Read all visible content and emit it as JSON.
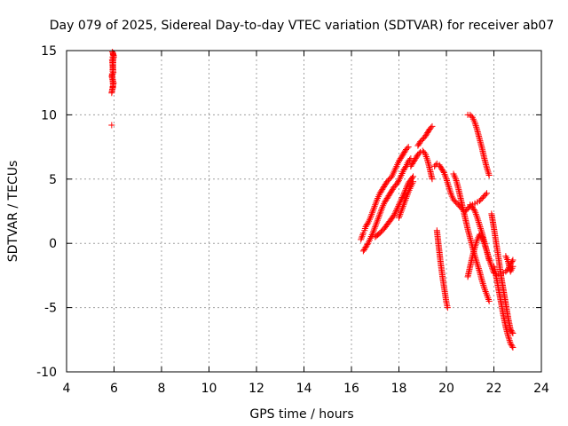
{
  "chart_data": {
    "type": "scatter",
    "title": "Day 079 of 2025, Sidereal Day-to-day VTEC variation (SDTVAR) for receiver ab07",
    "xlabel": "GPS time / hours",
    "ylabel": "SDTVAR / TECUs",
    "xlim": [
      4,
      24
    ],
    "ylim": [
      -10,
      15
    ],
    "xticks": [
      4,
      6,
      8,
      10,
      12,
      14,
      16,
      18,
      20,
      22,
      24
    ],
    "yticks": [
      -10,
      -5,
      0,
      5,
      10,
      15
    ],
    "xtick_labels": [
      "4",
      "6",
      "8",
      "10",
      "12",
      "14",
      "16",
      "18",
      "20",
      "22",
      "24"
    ],
    "ytick_labels": [
      "-10",
      "-5",
      "0",
      "5",
      "10",
      "15"
    ],
    "grid": true,
    "marker": "plus",
    "series": [
      {
        "color": "#ff0000",
        "x": [
          5.9,
          5.9,
          5.92,
          5.95,
          5.95,
          5.97,
          5.98,
          5.9,
          5.92,
          5.95,
          5.97,
          5.92,
          5.94,
          5.96,
          5.98,
          5.93,
          5.96,
          5.99,
          5.91,
          5.93,
          5.96,
          5.92,
          5.94,
          5.97
        ],
        "y": [
          9.2,
          11.7,
          11.9,
          12.1,
          12.2,
          12.4,
          12.5,
          13.0,
          13.1,
          13.2,
          13.3,
          14.3,
          14.5,
          14.7,
          14.6,
          14.9,
          14.8,
          14.5,
          11.8,
          12.0,
          12.3,
          13.2,
          13.4,
          14.4
        ]
      },
      {
        "color": "#ff0000",
        "x": [
          16.4,
          16.5,
          16.55,
          16.6,
          16.7,
          16.8,
          16.9,
          17.0,
          17.1,
          17.2,
          17.3,
          17.4,
          17.5,
          17.6,
          17.7,
          17.8,
          17.9,
          18.0,
          18.1,
          18.2,
          18.3,
          18.4
        ],
        "y": [
          0.3,
          0.8,
          1.0,
          1.3,
          1.6,
          2.0,
          2.5,
          3.0,
          3.5,
          3.9,
          4.2,
          4.5,
          4.8,
          5.0,
          5.2,
          5.6,
          6.0,
          6.4,
          6.7,
          7.0,
          7.3,
          7.5
        ]
      },
      {
        "color": "#ff0000",
        "x": [
          16.5,
          16.6,
          16.7,
          16.8,
          16.9,
          17.0,
          17.1,
          17.2,
          17.3,
          17.4,
          17.5,
          17.6,
          17.7,
          17.8,
          17.9,
          18.0,
          18.1,
          18.2,
          18.3,
          18.4,
          18.5
        ],
        "y": [
          -0.6,
          -0.3,
          0.0,
          0.4,
          0.8,
          1.3,
          1.8,
          2.3,
          2.8,
          3.2,
          3.5,
          3.8,
          4.1,
          4.4,
          4.6,
          4.9,
          5.3,
          5.7,
          6.0,
          6.4,
          6.6
        ]
      },
      {
        "color": "#ff0000",
        "x": [
          17.0,
          17.2,
          17.4,
          17.6,
          17.8,
          18.0,
          18.2,
          18.4,
          18.6
        ],
        "y": [
          0.5,
          0.8,
          1.2,
          1.7,
          2.2,
          3.0,
          3.8,
          4.7,
          5.2
        ]
      },
      {
        "color": "#ff0000",
        "x": [
          18.0,
          18.1,
          18.2,
          18.3,
          18.4,
          18.5,
          18.6
        ],
        "y": [
          2.0,
          2.5,
          3.0,
          3.5,
          4.0,
          4.4,
          4.8
        ]
      },
      {
        "color": "#ff0000",
        "x": [
          18.8,
          18.9,
          19.0,
          19.1,
          19.2,
          19.3,
          19.4
        ],
        "y": [
          7.6,
          7.9,
          8.1,
          8.3,
          8.6,
          8.9,
          9.1
        ]
      },
      {
        "color": "#ff0000",
        "x": [
          18.5,
          18.6,
          18.7,
          18.8,
          18.9,
          19.0,
          19.1,
          19.2,
          19.3,
          19.4
        ],
        "y": [
          6.0,
          6.3,
          6.6,
          6.9,
          7.1,
          7.2,
          7.0,
          6.5,
          5.8,
          5.0
        ]
      },
      {
        "color": "#ff0000",
        "x": [
          19.5,
          19.6,
          19.7,
          19.8,
          19.9,
          20.0,
          20.1,
          20.2,
          20.3,
          20.4,
          20.5,
          20.6,
          20.7,
          20.8,
          20.9,
          21.0,
          21.1,
          21.2,
          21.3,
          21.4,
          21.5,
          21.6,
          21.7
        ],
        "y": [
          6.0,
          6.2,
          6.1,
          5.8,
          5.5,
          5.0,
          4.4,
          3.8,
          3.4,
          3.2,
          3.0,
          2.8,
          2.6,
          2.5,
          2.7,
          2.9,
          3.0,
          3.1,
          3.2,
          3.3,
          3.5,
          3.7,
          3.9
        ]
      },
      {
        "color": "#ff0000",
        "x": [
          20.3,
          20.4,
          20.5,
          20.6,
          20.7,
          20.8,
          20.9,
          21.0,
          21.1,
          21.2,
          21.3,
          21.4,
          21.5,
          21.6,
          21.7,
          21.8
        ],
        "y": [
          5.4,
          5.0,
          4.3,
          3.5,
          2.7,
          1.9,
          1.1,
          0.4,
          -0.3,
          -1.0,
          -1.6,
          -2.2,
          -2.9,
          -3.5,
          -4.0,
          -4.5
        ]
      },
      {
        "color": "#ff0000",
        "x": [
          19.6,
          19.65,
          19.7,
          19.75,
          19.8,
          19.85,
          19.9,
          19.95,
          20.0,
          20.05
        ],
        "y": [
          1.0,
          0.2,
          -0.6,
          -1.4,
          -2.1,
          -2.8,
          -3.4,
          -4.0,
          -4.6,
          -5.0
        ]
      },
      {
        "color": "#ff0000",
        "x": [
          20.9,
          21.0,
          21.1,
          21.2,
          21.3,
          21.4,
          21.5,
          21.6,
          21.7,
          21.8
        ],
        "y": [
          10.0,
          10.0,
          9.8,
          9.4,
          8.8,
          8.1,
          7.4,
          6.6,
          5.9,
          5.3
        ]
      },
      {
        "color": "#ff0000",
        "x": [
          20.9,
          21.0,
          21.1,
          21.2,
          21.3,
          21.4,
          21.5,
          21.6,
          21.7,
          21.8,
          21.9,
          22.0
        ],
        "y": [
          -2.6,
          -1.8,
          -1.0,
          -0.3,
          0.3,
          0.7,
          0.5,
          0.0,
          -0.6,
          -1.2,
          -1.8,
          -2.3
        ]
      },
      {
        "color": "#ff0000",
        "x": [
          21.0,
          21.1,
          21.2,
          21.3,
          21.4,
          21.5,
          21.6,
          21.7,
          21.8
        ],
        "y": [
          3.0,
          2.8,
          2.5,
          2.0,
          1.4,
          0.8,
          0.1,
          -0.6,
          -1.3
        ]
      },
      {
        "color": "#ff0000",
        "x": [
          21.9,
          22.0,
          22.1,
          22.2,
          22.3,
          22.4,
          22.5,
          22.6,
          22.7,
          22.8
        ],
        "y": [
          2.3,
          1.2,
          0.0,
          -1.2,
          -2.5,
          -3.6,
          -4.7,
          -5.8,
          -6.7,
          -7.0
        ]
      },
      {
        "color": "#ff0000",
        "x": [
          22.0,
          22.1,
          22.2,
          22.3,
          22.4,
          22.5,
          22.6,
          22.7,
          22.8
        ],
        "y": [
          -1.8,
          -2.6,
          -3.6,
          -4.6,
          -5.6,
          -6.5,
          -7.2,
          -7.8,
          -8.1
        ]
      },
      {
        "color": "#ff0000",
        "x": [
          22.1,
          22.2,
          22.3,
          22.4,
          22.5,
          22.6,
          22.7,
          22.8
        ],
        "y": [
          -2.5,
          -2.4,
          -2.4,
          -2.3,
          -2.2,
          -2.0,
          -1.6,
          -1.3
        ]
      },
      {
        "color": "#ff0000",
        "x": [
          22.5,
          22.6,
          22.7,
          22.8
        ],
        "y": [
          -1.0,
          -1.4,
          -2.2,
          -1.8
        ]
      }
    ]
  }
}
